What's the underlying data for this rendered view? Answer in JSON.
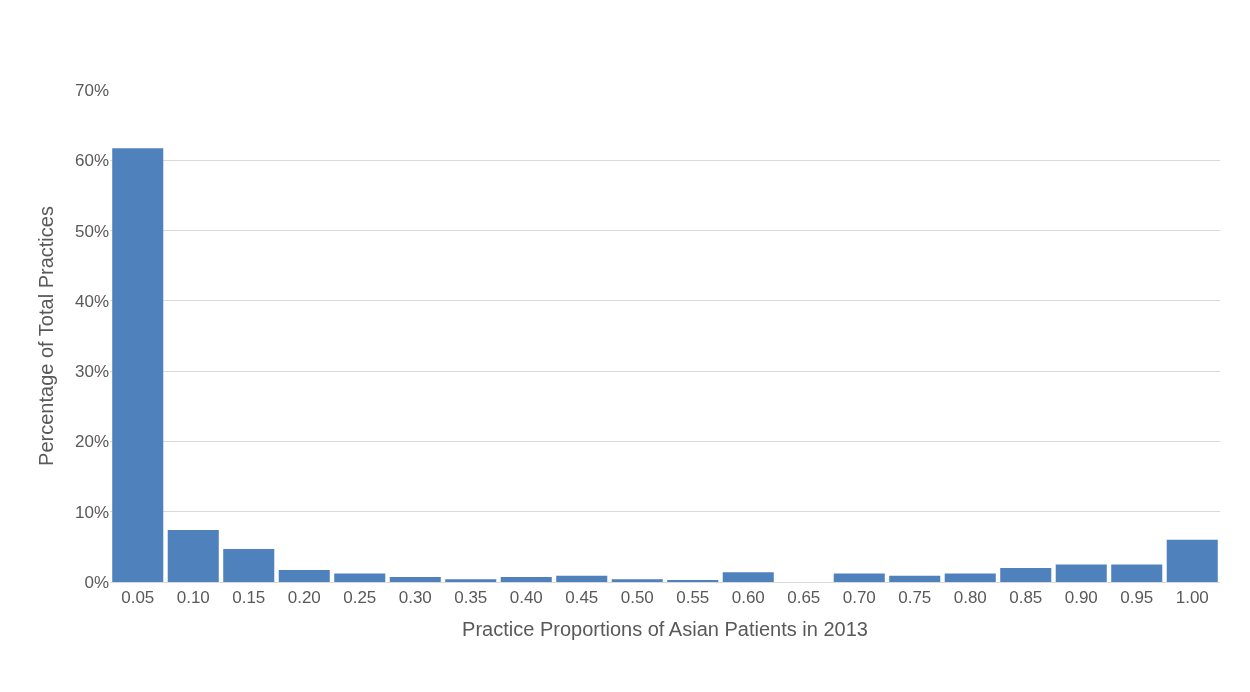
{
  "chart_data": {
    "type": "bar",
    "xlabel": "Practice Proportions of Asian Patients in 2013",
    "ylabel": "Percentage of Total Practices",
    "categories": [
      "0.05",
      "0.10",
      "0.15",
      "0.20",
      "0.25",
      "0.30",
      "0.35",
      "0.40",
      "0.45",
      "0.50",
      "0.55",
      "0.60",
      "0.65",
      "0.70",
      "0.75",
      "0.80",
      "0.85",
      "0.90",
      "0.95",
      "1.00"
    ],
    "values": [
      61.7,
      7.4,
      4.7,
      1.7,
      1.2,
      0.7,
      0.4,
      0.7,
      0.9,
      0.4,
      0.2,
      1.4,
      0,
      1.2,
      0.9,
      1.2,
      2.0,
      2.5,
      2.5,
      6.0
    ],
    "color": "#4f81bd",
    "ylim": [
      0,
      70
    ],
    "yticks": [
      {
        "value": 0,
        "label": "0%"
      },
      {
        "value": 10,
        "label": "10%"
      },
      {
        "value": 20,
        "label": "20%"
      },
      {
        "value": 30,
        "label": "30%"
      },
      {
        "value": 40,
        "label": "40%"
      },
      {
        "value": 50,
        "label": "50%"
      },
      {
        "value": 60,
        "label": "60%"
      },
      {
        "value": 70,
        "label": "70%"
      }
    ],
    "grid": "y"
  }
}
